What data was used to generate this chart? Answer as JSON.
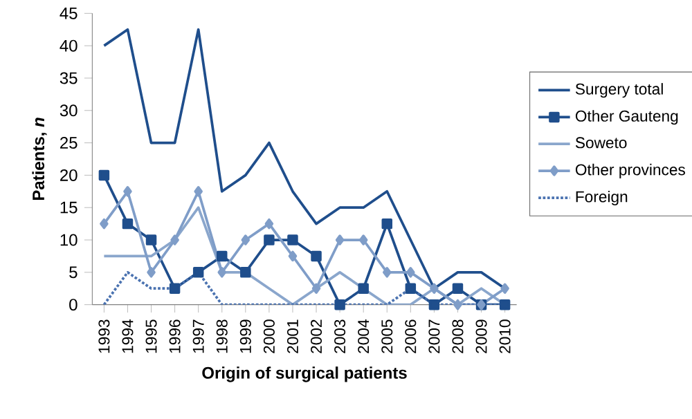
{
  "chart_data": {
    "type": "line",
    "xlabel": "Origin of surgical patients",
    "ylabel": "Patients, *n*",
    "categories": [
      "1993",
      "1994",
      "1995",
      "1996",
      "1997",
      "1998",
      "1999",
      "2000",
      "2001",
      "2002",
      "2003",
      "2004",
      "2005",
      "2006",
      "2007",
      "2008",
      "2009",
      "2010"
    ],
    "ylim": [
      0,
      45
    ],
    "yticks": [
      0,
      5,
      10,
      15,
      20,
      25,
      30,
      35,
      40,
      45
    ],
    "grid": false,
    "legend": "right",
    "series": [
      {
        "name": "Surgery total",
        "color": "#1f4e8c",
        "marker": "none",
        "line_style": "solid",
        "values": [
          40,
          42.5,
          25,
          25,
          42.5,
          17.5,
          20,
          25,
          17.5,
          12.5,
          15,
          15,
          17.5,
          10,
          2.5,
          5,
          5,
          2.5
        ]
      },
      {
        "name": "Other Gauteng",
        "color": "#1f4e8c",
        "marker": "square",
        "line_style": "solid",
        "values": [
          20,
          12.5,
          10,
          2.5,
          5,
          7.5,
          5,
          10,
          10,
          7.5,
          0,
          2.5,
          12.5,
          2.5,
          0,
          2.5,
          0,
          0
        ]
      },
      {
        "name": "Soweto",
        "color": "#8aa6cc",
        "marker": "none",
        "line_style": "solid",
        "values": [
          7.5,
          7.5,
          7.5,
          10,
          15,
          5,
          5,
          2.5,
          0,
          2.5,
          5,
          2.5,
          0,
          0,
          2.5,
          0,
          2.5,
          0
        ]
      },
      {
        "name": "Other provinces",
        "color": "#7f9dc8",
        "marker": "diamond",
        "line_style": "solid",
        "values": [
          12.5,
          17.5,
          5,
          10,
          17.5,
          5,
          10,
          12.5,
          7.5,
          2.5,
          10,
          10,
          5,
          5,
          2.5,
          0,
          0,
          2.5
        ]
      },
      {
        "name": "Foreign",
        "color": "#4a72b0",
        "marker": "none",
        "line_style": "dotted",
        "values": [
          0,
          5,
          2.5,
          2.5,
          5,
          0,
          0,
          0,
          0,
          0,
          0,
          0,
          0,
          2.5,
          0,
          0,
          0,
          0
        ]
      }
    ]
  }
}
